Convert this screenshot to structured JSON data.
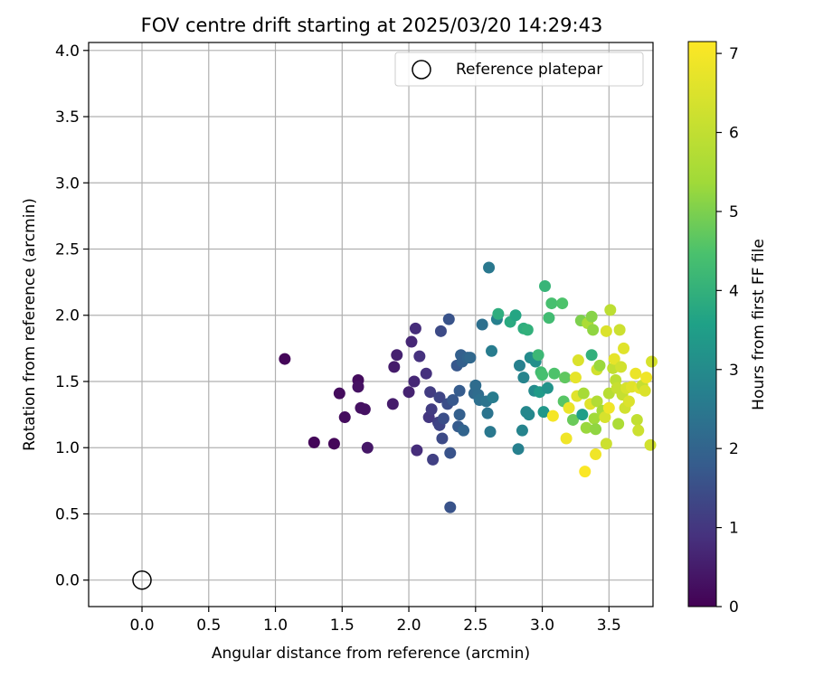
{
  "chart_data": {
    "type": "scatter",
    "title": "FOV centre drift starting at 2025/03/20 14:29:43",
    "xlabel": "Angular distance from reference (arcmin)",
    "ylabel": "Rotation from reference (arcmin)",
    "xlim": [
      -0.4,
      3.83
    ],
    "ylim": [
      -0.2,
      4.06
    ],
    "xticks": [
      "0.0",
      "0.5",
      "1.0",
      "1.5",
      "2.0",
      "2.5",
      "3.0",
      "3.5"
    ],
    "xtick_values": [
      0.0,
      0.5,
      1.0,
      1.5,
      2.0,
      2.5,
      3.0,
      3.5
    ],
    "yticks": [
      "0.0",
      "0.5",
      "1.0",
      "1.5",
      "2.0",
      "2.5",
      "3.0",
      "3.5",
      "4.0"
    ],
    "ytick_values": [
      0.0,
      0.5,
      1.0,
      1.5,
      2.0,
      2.5,
      3.0,
      3.5,
      4.0
    ],
    "grid": true,
    "legend": {
      "position": "top-right",
      "entries": [
        "Reference platepar"
      ]
    },
    "reference_point": {
      "x": 0.0,
      "y": 0.0,
      "label": "Reference platepar"
    },
    "colorbar": {
      "label": "Hours from first FF file",
      "range": [
        0,
        7.15
      ],
      "ticks": [
        "0",
        "1",
        "2",
        "3",
        "4",
        "5",
        "6",
        "7"
      ],
      "tick_values": [
        0,
        1,
        2,
        3,
        4,
        5,
        6,
        7
      ],
      "colormap": "viridis"
    },
    "points": [
      [
        1.07,
        1.67,
        0.1
      ],
      [
        1.29,
        1.04,
        0.1
      ],
      [
        1.44,
        1.03,
        0.1
      ],
      [
        1.48,
        1.41,
        0.2
      ],
      [
        1.52,
        1.23,
        0.2
      ],
      [
        1.62,
        1.51,
        0.2
      ],
      [
        1.62,
        1.46,
        0.3
      ],
      [
        1.64,
        1.3,
        0.3
      ],
      [
        1.67,
        1.29,
        0.3
      ],
      [
        1.69,
        1.0,
        0.4
      ],
      [
        1.88,
        1.33,
        0.5
      ],
      [
        1.89,
        1.61,
        0.5
      ],
      [
        1.91,
        1.7,
        0.6
      ],
      [
        2.0,
        1.42,
        0.6
      ],
      [
        2.02,
        1.8,
        0.7
      ],
      [
        2.04,
        1.5,
        0.7
      ],
      [
        2.05,
        1.9,
        0.8
      ],
      [
        2.06,
        0.98,
        0.8
      ],
      [
        2.08,
        1.69,
        0.9
      ],
      [
        2.13,
        1.56,
        0.9
      ],
      [
        2.15,
        1.23,
        1.0
      ],
      [
        2.16,
        1.42,
        1.1
      ],
      [
        2.17,
        1.29,
        1.1
      ],
      [
        2.18,
        0.91,
        1.2
      ],
      [
        2.22,
        1.19,
        1.2
      ],
      [
        2.23,
        1.38,
        1.3
      ],
      [
        2.23,
        1.17,
        1.3
      ],
      [
        2.24,
        1.88,
        1.4
      ],
      [
        2.25,
        1.07,
        1.4
      ],
      [
        2.26,
        1.22,
        1.5
      ],
      [
        2.29,
        1.33,
        1.5
      ],
      [
        2.3,
        1.97,
        1.6
      ],
      [
        2.31,
        0.55,
        1.6
      ],
      [
        2.31,
        0.96,
        1.6
      ],
      [
        2.33,
        1.36,
        1.7
      ],
      [
        2.36,
        1.62,
        1.7
      ],
      [
        2.37,
        1.16,
        1.8
      ],
      [
        2.38,
        1.43,
        1.8
      ],
      [
        2.38,
        1.25,
        1.9
      ],
      [
        2.39,
        1.7,
        1.9
      ],
      [
        2.4,
        1.65,
        1.9
      ],
      [
        2.41,
        1.13,
        2.0
      ],
      [
        2.44,
        1.68,
        2.0
      ],
      [
        2.46,
        1.68,
        2.1
      ],
      [
        2.49,
        1.41,
        2.1
      ],
      [
        2.5,
        1.47,
        2.2
      ],
      [
        2.52,
        1.4,
        2.2
      ],
      [
        2.53,
        1.36,
        2.3
      ],
      [
        2.55,
        1.93,
        2.3
      ],
      [
        2.58,
        1.35,
        2.4
      ],
      [
        2.59,
        1.26,
        2.4
      ],
      [
        2.6,
        2.36,
        2.5
      ],
      [
        2.61,
        1.12,
        2.5
      ],
      [
        2.62,
        1.73,
        2.6
      ],
      [
        2.63,
        1.38,
        2.6
      ],
      [
        2.66,
        1.97,
        2.7
      ],
      [
        2.67,
        2.01,
        3.9
      ],
      [
        2.76,
        1.95,
        3.8
      ],
      [
        2.8,
        2.0,
        3.7
      ],
      [
        2.82,
        0.99,
        2.7
      ],
      [
        2.83,
        1.62,
        2.7
      ],
      [
        2.85,
        1.13,
        2.8
      ],
      [
        2.86,
        1.53,
        2.8
      ],
      [
        2.86,
        1.9,
        3.9
      ],
      [
        2.88,
        1.27,
        2.9
      ],
      [
        2.89,
        1.89,
        4.0
      ],
      [
        2.9,
        1.25,
        2.9
      ],
      [
        2.91,
        1.68,
        3.0
      ],
      [
        2.94,
        1.43,
        3.0
      ],
      [
        2.95,
        1.65,
        3.1
      ],
      [
        2.97,
        1.7,
        4.2
      ],
      [
        2.98,
        1.42,
        3.4
      ],
      [
        2.99,
        1.57,
        4.3
      ],
      [
        3.0,
        1.55,
        4.4
      ],
      [
        3.01,
        1.27,
        3.3
      ],
      [
        3.02,
        2.22,
        4.1
      ],
      [
        3.04,
        1.45,
        3.2
      ],
      [
        3.05,
        1.98,
        4.3
      ],
      [
        3.07,
        2.09,
        4.4
      ],
      [
        3.08,
        1.24,
        7.0
      ],
      [
        3.09,
        1.56,
        4.5
      ],
      [
        3.15,
        2.09,
        4.5
      ],
      [
        3.16,
        1.35,
        4.6
      ],
      [
        3.17,
        1.53,
        4.7
      ],
      [
        3.18,
        1.07,
        6.9
      ],
      [
        3.2,
        1.3,
        6.8
      ],
      [
        3.23,
        1.21,
        4.8
      ],
      [
        3.25,
        1.53,
        6.7
      ],
      [
        3.26,
        1.39,
        6.6
      ],
      [
        3.27,
        1.66,
        6.5
      ],
      [
        3.29,
        1.96,
        5.0
      ],
      [
        3.3,
        1.25,
        3.5
      ],
      [
        3.31,
        1.41,
        5.5
      ],
      [
        3.32,
        0.82,
        7.1
      ],
      [
        3.33,
        1.15,
        5.3
      ],
      [
        3.34,
        1.94,
        5.6
      ],
      [
        3.36,
        1.33,
        6.6
      ],
      [
        3.37,
        1.7,
        4.0
      ],
      [
        3.37,
        1.99,
        5.1
      ],
      [
        3.38,
        1.89,
        5.2
      ],
      [
        3.39,
        1.22,
        5.4
      ],
      [
        3.4,
        1.14,
        5.2
      ],
      [
        3.4,
        0.95,
        6.9
      ],
      [
        3.41,
        1.35,
        5.7
      ],
      [
        3.41,
        1.59,
        6.3
      ],
      [
        3.43,
        1.62,
        5.3
      ],
      [
        3.45,
        1.28,
        5.5
      ],
      [
        3.47,
        1.23,
        6.4
      ],
      [
        3.48,
        1.88,
        6.5
      ],
      [
        3.48,
        1.03,
        6.2
      ],
      [
        3.5,
        1.3,
        6.9
      ],
      [
        3.5,
        1.41,
        5.8
      ],
      [
        3.51,
        2.04,
        5.9
      ],
      [
        3.53,
        1.6,
        6.0
      ],
      [
        3.54,
        1.67,
        6.7
      ],
      [
        3.55,
        1.51,
        5.9
      ],
      [
        3.56,
        1.45,
        6.1
      ],
      [
        3.57,
        1.18,
        5.6
      ],
      [
        3.58,
        1.89,
        6.2
      ],
      [
        3.59,
        1.61,
        6.3
      ],
      [
        3.6,
        1.4,
        6.1
      ],
      [
        3.61,
        1.75,
        6.6
      ],
      [
        3.62,
        1.3,
        6.3
      ],
      [
        3.63,
        1.45,
        6.4
      ],
      [
        3.65,
        1.35,
        6.5
      ],
      [
        3.67,
        1.46,
        6.6
      ],
      [
        3.7,
        1.56,
        6.8
      ],
      [
        3.71,
        1.21,
        6.0
      ],
      [
        3.72,
        1.13,
        6.2
      ],
      [
        3.73,
        1.45,
        6.7
      ],
      [
        3.75,
        1.47,
        6.1
      ],
      [
        3.77,
        1.43,
        6.5
      ],
      [
        3.78,
        1.53,
        6.9
      ],
      [
        3.81,
        1.02,
        6.3
      ],
      [
        3.82,
        1.65,
        6.4
      ]
    ]
  }
}
